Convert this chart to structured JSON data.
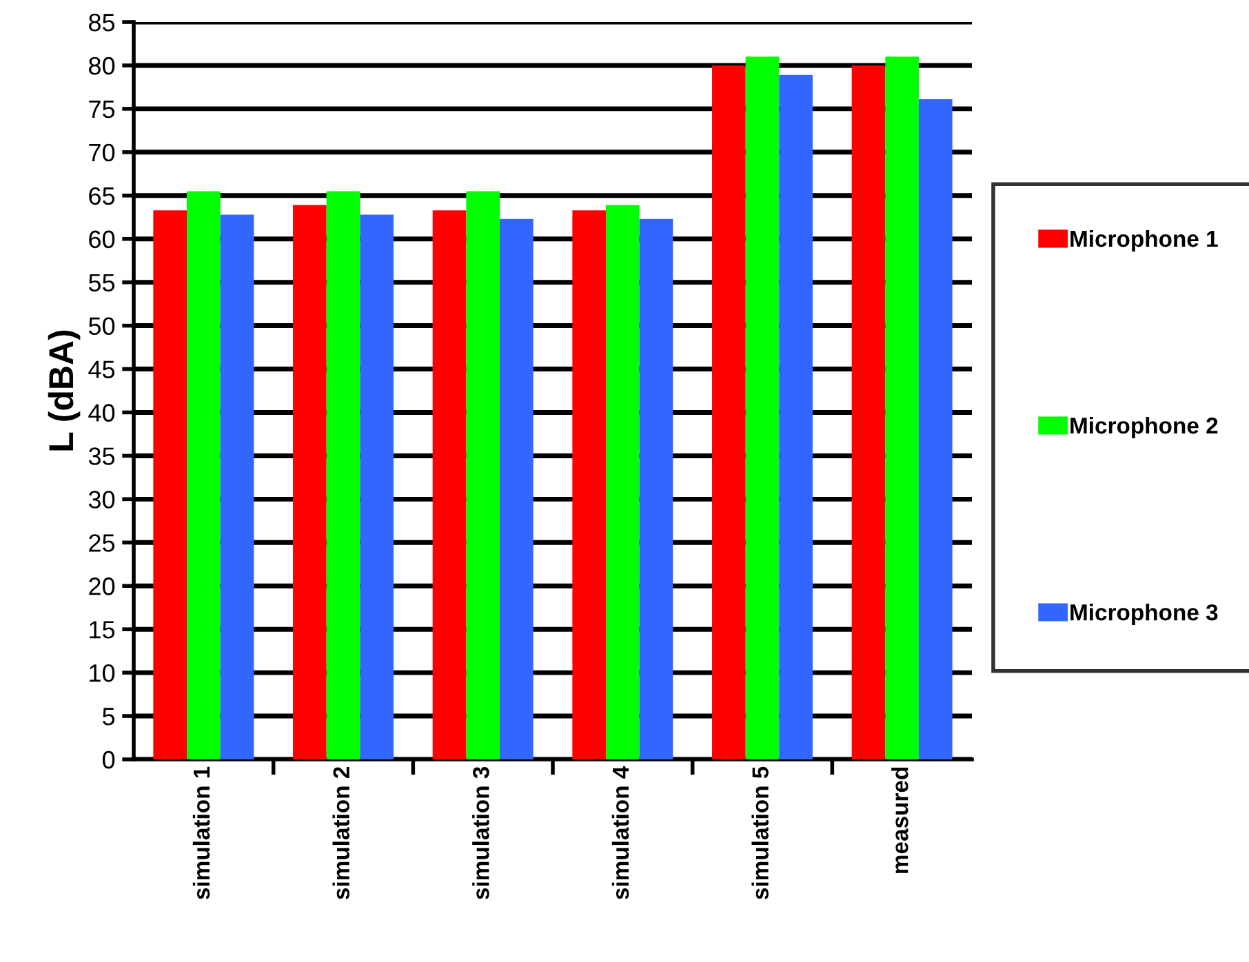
{
  "chart_data": {
    "type": "bar",
    "ylabel": "L (dBA)",
    "categories": [
      "simulation 1",
      "simulation 2",
      "simulation 3",
      "simulation 4",
      "simulation 5",
      "measured"
    ],
    "series": [
      {
        "name": "Microphone 1",
        "color": "#ff0000",
        "values": [
          63.3,
          63.9,
          63.3,
          63.3,
          80,
          80
        ]
      },
      {
        "name": "Microphone 2",
        "color": "#00ff00",
        "values": [
          65.5,
          65.5,
          65.5,
          63.9,
          81,
          81
        ]
      },
      {
        "name": "Microphone 3",
        "color": "#3366ff",
        "values": [
          62.8,
          62.8,
          62.3,
          62.3,
          78.9,
          76.1
        ]
      }
    ],
    "ylim": [
      0,
      85
    ],
    "yticks": [
      0,
      5,
      10,
      15,
      20,
      25,
      30,
      35,
      40,
      45,
      50,
      55,
      60,
      65,
      70,
      75,
      80,
      85
    ],
    "grid": "y",
    "legend": "right"
  }
}
